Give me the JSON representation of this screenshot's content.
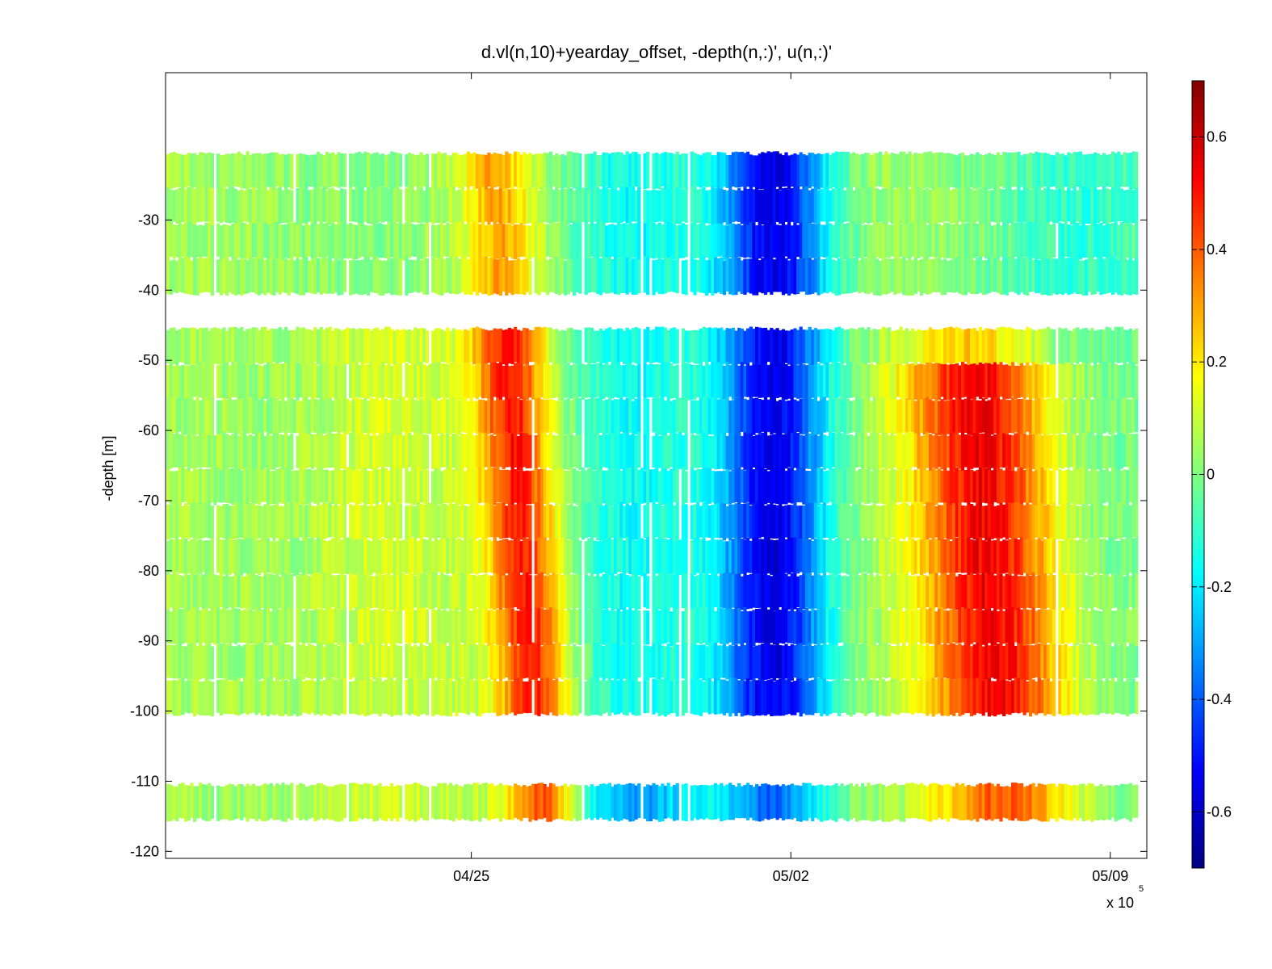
{
  "chart_data": {
    "type": "heatmap",
    "title": "d.vl(n,10)+yearday_offset, -depth(n,:)', u(n,:)'",
    "xlabel": "",
    "ylabel": "-depth [m]",
    "x_exponent_label": "x 10",
    "x_exponent_power": "5",
    "x_ticks": [
      {
        "label": "04/25",
        "day": 8
      },
      {
        "label": "05/02",
        "day": 15
      },
      {
        "label": "05/09",
        "day": 22
      }
    ],
    "xlim_days": [
      1.3,
      22.8
    ],
    "ylim": [
      -121,
      -9
    ],
    "y_ticks": [
      -30,
      -40,
      -50,
      -60,
      -70,
      -80,
      -90,
      -100,
      -110,
      -120
    ],
    "depth_bins": [
      -23,
      -28,
      -33,
      -38,
      -48,
      -53,
      -58,
      -63,
      -68,
      -73,
      -78,
      -83,
      -88,
      -93,
      -98,
      -113
    ],
    "valid_depth_ranges": [
      [
        -25.5,
        -40.5
      ],
      [
        -45.5,
        -100.5
      ],
      [
        -110.5,
        -115.5
      ]
    ],
    "u_features": [
      {
        "day": 8.8,
        "depth": -75,
        "u": 0.48
      },
      {
        "day": 14.5,
        "depth": -60,
        "u": -0.62
      },
      {
        "day": 19.2,
        "depth": -77,
        "u": 0.58
      },
      {
        "day": 13.5,
        "depth": -113,
        "u": -0.35
      },
      {
        "day": 18.5,
        "depth": -113,
        "u": 0.42
      }
    ],
    "clim": [
      -0.7,
      0.7
    ],
    "colorbar_ticks": [
      0.6,
      0.4,
      0.2,
      0,
      -0.2,
      -0.4,
      -0.6
    ],
    "colormap": "jet",
    "grid": false
  }
}
